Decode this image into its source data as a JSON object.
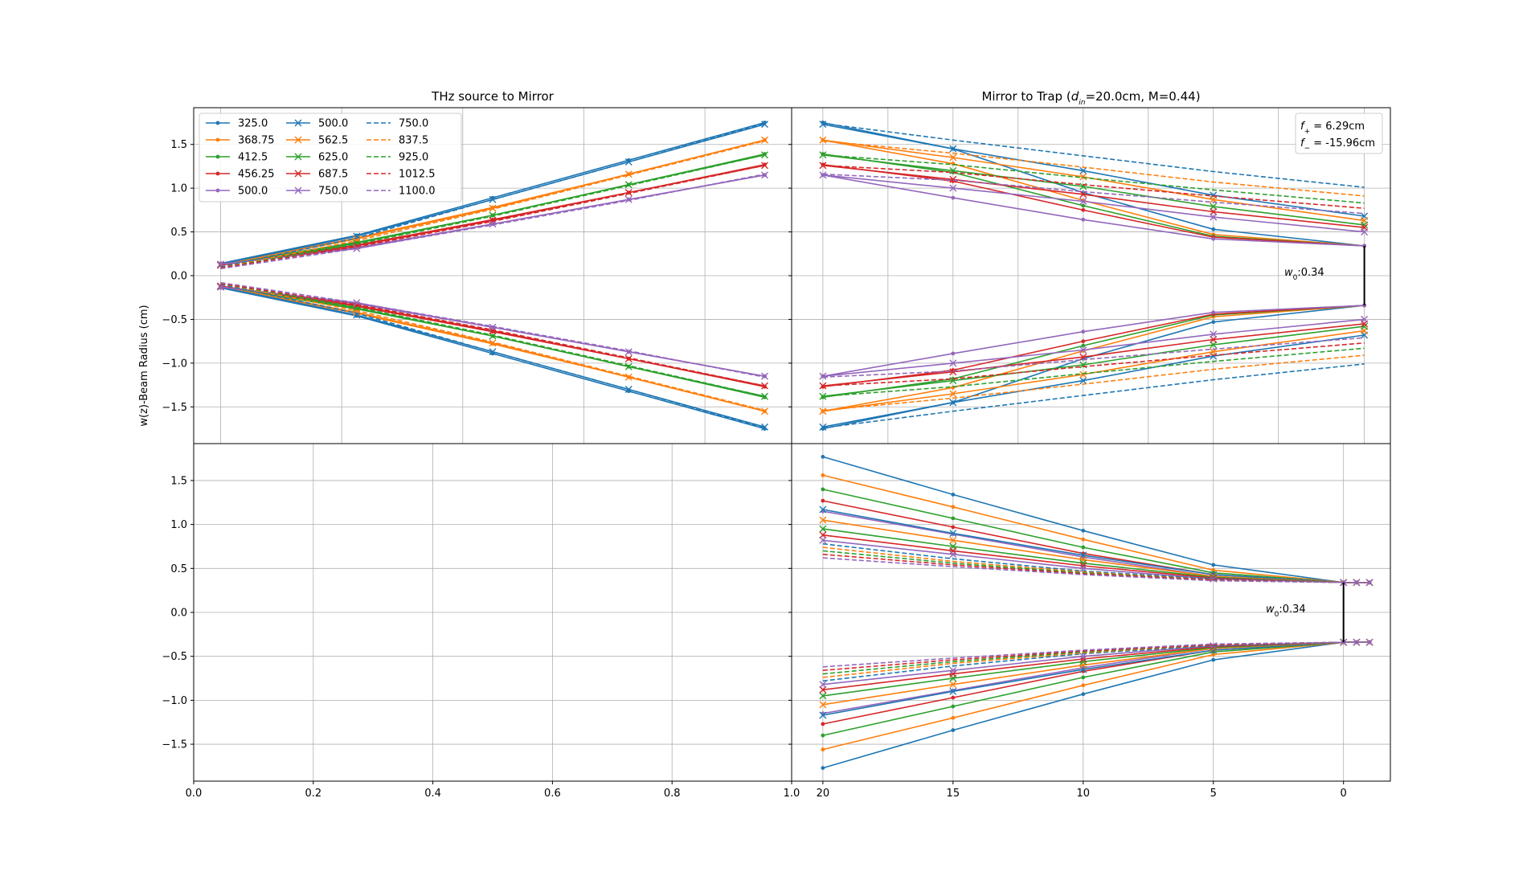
{
  "chart_data": [
    {
      "type": "line",
      "panel": "top-left",
      "title": "THz source to Mirror",
      "ylabel": "w(z)-Beam Radius (cm)",
      "xlim": [
        0.0,
        1.0
      ],
      "ylim": [
        -1.92,
        1.92
      ],
      "grid": true,
      "x_tick_labels_shown": false,
      "yticks": [
        "1.5",
        "1.0",
        "0.5",
        "0.0",
        "−0.5",
        "−1.0",
        "−1.5"
      ],
      "legend": {
        "placement": "top-left",
        "columns": 3
      },
      "x": [
        0.045,
        0.2725,
        0.5,
        0.7275,
        0.955
      ],
      "series": [
        {
          "name": "325.0",
          "color": "#1f77b4",
          "marker": "dot",
          "dash": "solid",
          "values": [
            0.14,
            0.46,
            0.89,
            1.32,
            1.75
          ]
        },
        {
          "name": "368.75",
          "color": "#ff7f0e",
          "marker": "dot",
          "dash": "solid",
          "values": [
            0.13,
            0.43,
            0.78,
            1.16,
            1.55
          ]
        },
        {
          "name": "412.5",
          "color": "#2ca02c",
          "marker": "dot",
          "dash": "solid",
          "values": [
            0.13,
            0.38,
            0.69,
            1.04,
            1.39
          ]
        },
        {
          "name": "456.25",
          "color": "#d62728",
          "marker": "dot",
          "dash": "solid",
          "values": [
            0.13,
            0.35,
            0.64,
            0.95,
            1.27
          ]
        },
        {
          "name": "500.0",
          "color": "#9467bd",
          "marker": "dot",
          "dash": "solid",
          "values": [
            0.14,
            0.32,
            0.59,
            0.87,
            1.15
          ]
        },
        {
          "name": "500.0",
          "color": "#1f77b4",
          "marker": "cross",
          "dash": "solid",
          "values": [
            0.13,
            0.45,
            0.87,
            1.3,
            1.73
          ]
        },
        {
          "name": "562.5",
          "color": "#ff7f0e",
          "marker": "cross",
          "dash": "solid",
          "values": [
            0.12,
            0.42,
            0.77,
            1.16,
            1.55
          ]
        },
        {
          "name": "625.0",
          "color": "#2ca02c",
          "marker": "cross",
          "dash": "solid",
          "values": [
            0.12,
            0.37,
            0.69,
            1.04,
            1.38
          ]
        },
        {
          "name": "687.5",
          "color": "#d62728",
          "marker": "cross",
          "dash": "solid",
          "values": [
            0.12,
            0.34,
            0.63,
            0.95,
            1.26
          ]
        },
        {
          "name": "750.0",
          "color": "#9467bd",
          "marker": "cross",
          "dash": "solid",
          "values": [
            0.13,
            0.31,
            0.59,
            0.87,
            1.15
          ]
        },
        {
          "name": "750.0",
          "color": "#1f77b4",
          "marker": "none",
          "dash": "dashed",
          "values": [
            0.1,
            0.43,
            0.87,
            1.3,
            1.74
          ]
        },
        {
          "name": "837.5",
          "color": "#ff7f0e",
          "marker": "none",
          "dash": "dashed",
          "values": [
            0.09,
            0.4,
            0.76,
            1.15,
            1.54
          ]
        },
        {
          "name": "925.0",
          "color": "#2ca02c",
          "marker": "none",
          "dash": "dashed",
          "values": [
            0.09,
            0.36,
            0.68,
            1.03,
            1.38
          ]
        },
        {
          "name": "1012.5",
          "color": "#d62728",
          "marker": "none",
          "dash": "dashed",
          "values": [
            0.09,
            0.33,
            0.62,
            0.94,
            1.26
          ]
        },
        {
          "name": "1100.0",
          "color": "#9467bd",
          "marker": "none",
          "dash": "dashed",
          "values": [
            0.08,
            0.31,
            0.58,
            0.86,
            1.16
          ]
        }
      ]
    },
    {
      "type": "line",
      "panel": "top-right",
      "title_parts": [
        "Mirror to Trap (",
        "d",
        "in",
        "=20.0cm, M=0.44)"
      ],
      "xlim": [
        21.2,
        -1.8
      ],
      "ylim": [
        -1.92,
        1.92
      ],
      "grid": true,
      "x_tick_labels_shown": false,
      "xtick_values": [
        20,
        15,
        10,
        5,
        0
      ],
      "annotation_box": [
        {
          "symbol": "f",
          "sub": "+",
          "text": " = 6.29cm"
        },
        {
          "symbol": "f",
          "sub": "−",
          "text": " = -15.96cm"
        }
      ],
      "waist_label": {
        "symbol": "w",
        "sub": "0",
        "text": ":0.34"
      },
      "waist": {
        "x": -0.8,
        "value": 0.34
      },
      "x": [
        20,
        15,
        10,
        5,
        -0.8
      ],
      "series": [
        {
          "color": "#1f77b4",
          "marker": "dot",
          "dash": "solid",
          "values": [
            1.75,
            1.45,
            0.95,
            0.53,
            0.34
          ]
        },
        {
          "color": "#ff7f0e",
          "marker": "dot",
          "dash": "solid",
          "values": [
            1.55,
            1.28,
            0.86,
            0.47,
            0.34
          ]
        },
        {
          "color": "#2ca02c",
          "marker": "dot",
          "dash": "solid",
          "values": [
            1.39,
            1.18,
            0.8,
            0.45,
            0.34
          ]
        },
        {
          "color": "#d62728",
          "marker": "dot",
          "dash": "solid",
          "values": [
            1.27,
            1.08,
            0.75,
            0.44,
            0.34
          ]
        },
        {
          "color": "#9467bd",
          "marker": "dot",
          "dash": "solid",
          "values": [
            1.15,
            0.89,
            0.64,
            0.42,
            0.34
          ]
        },
        {
          "color": "#1f77b4",
          "marker": "cross",
          "dash": "solid",
          "values": [
            1.73,
            1.45,
            1.2,
            0.92,
            0.68
          ]
        },
        {
          "color": "#ff7f0e",
          "marker": "cross",
          "dash": "solid",
          "values": [
            1.55,
            1.35,
            1.13,
            0.87,
            0.63
          ]
        },
        {
          "color": "#2ca02c",
          "marker": "cross",
          "dash": "solid",
          "values": [
            1.38,
            1.2,
            1.02,
            0.79,
            0.58
          ]
        },
        {
          "color": "#d62728",
          "marker": "cross",
          "dash": "solid",
          "values": [
            1.26,
            1.1,
            0.93,
            0.73,
            0.55
          ]
        },
        {
          "color": "#9467bd",
          "marker": "cross",
          "dash": "solid",
          "values": [
            1.15,
            1.0,
            0.85,
            0.67,
            0.5
          ]
        },
        {
          "color": "#1f77b4",
          "marker": "none",
          "dash": "dashed",
          "values": [
            1.74,
            1.55,
            1.37,
            1.19,
            1.01
          ]
        },
        {
          "color": "#ff7f0e",
          "marker": "none",
          "dash": "dashed",
          "values": [
            1.54,
            1.4,
            1.24,
            1.07,
            0.91
          ]
        },
        {
          "color": "#2ca02c",
          "marker": "none",
          "dash": "dashed",
          "values": [
            1.38,
            1.27,
            1.12,
            0.98,
            0.83
          ]
        },
        {
          "color": "#d62728",
          "marker": "none",
          "dash": "dashed",
          "values": [
            1.26,
            1.18,
            1.04,
            0.91,
            0.77
          ]
        },
        {
          "color": "#9467bd",
          "marker": "none",
          "dash": "dashed",
          "values": [
            1.16,
            1.09,
            0.96,
            0.84,
            0.71
          ]
        }
      ]
    },
    {
      "type": "line",
      "panel": "bottom-left",
      "xlim": [
        0.0,
        1.0
      ],
      "ylim": [
        -1.92,
        1.92
      ],
      "grid": true,
      "xticks": [
        "0.0",
        "0.2",
        "0.4",
        "0.6",
        "0.8",
        "1.0"
      ],
      "yticks": [
        "1.5",
        "1.0",
        "0.5",
        "0.0",
        "−0.5",
        "−1.0",
        "−1.5"
      ],
      "series": []
    },
    {
      "type": "line",
      "panel": "bottom-right",
      "xlim": [
        21.2,
        -1.8
      ],
      "ylim": [
        -1.92,
        1.92
      ],
      "grid": true,
      "xticks": [
        "20",
        "15",
        "10",
        "5",
        "0"
      ],
      "xtick_values": [
        20,
        15,
        10,
        5,
        0
      ],
      "waist_label": {
        "symbol": "w",
        "sub": "0",
        "text": ":0.34"
      },
      "waist": {
        "x": 0,
        "value": 0.34
      },
      "series": [
        {
          "color": "#1f77b4",
          "marker": "dot",
          "dash": "solid",
          "x": [
            20,
            15,
            10,
            5,
            0,
            -0.5,
            -1.0
          ],
          "values": [
            1.77,
            1.34,
            0.93,
            0.54,
            0.34,
            0.34,
            0.34
          ]
        },
        {
          "color": "#ff7f0e",
          "marker": "dot",
          "dash": "solid",
          "x": [
            20,
            15,
            10,
            5,
            0,
            -0.5,
            -1.0
          ],
          "values": [
            1.56,
            1.2,
            0.83,
            0.48,
            0.34,
            0.34,
            0.34
          ]
        },
        {
          "color": "#2ca02c",
          "marker": "dot",
          "dash": "solid",
          "x": [
            20,
            15,
            10,
            5,
            0,
            -0.5,
            -1.0
          ],
          "values": [
            1.4,
            1.07,
            0.74,
            0.45,
            0.34,
            0.34,
            0.34
          ]
        },
        {
          "color": "#d62728",
          "marker": "dot",
          "dash": "solid",
          "x": [
            20,
            15,
            10,
            5,
            0,
            -0.5,
            -1.0
          ],
          "values": [
            1.27,
            0.97,
            0.67,
            0.43,
            0.34,
            0.34,
            0.34
          ]
        },
        {
          "color": "#9467bd",
          "marker": "dot",
          "dash": "solid",
          "x": [
            20,
            15,
            10,
            5,
            0,
            -0.5,
            -1.0
          ],
          "values": [
            1.15,
            0.89,
            0.63,
            0.41,
            0.34,
            0.34,
            0.34
          ]
        },
        {
          "color": "#1f77b4",
          "marker": "cross",
          "dash": "solid",
          "x": [
            20,
            15,
            10,
            5,
            0,
            -0.5,
            -1.0
          ],
          "values": [
            1.17,
            0.9,
            0.65,
            0.43,
            0.34,
            0.34,
            0.34
          ]
        },
        {
          "color": "#ff7f0e",
          "marker": "cross",
          "dash": "solid",
          "x": [
            20,
            15,
            10,
            5,
            0,
            -0.5,
            -1.0
          ],
          "values": [
            1.05,
            0.82,
            0.6,
            0.41,
            0.34,
            0.34,
            0.34
          ]
        },
        {
          "color": "#2ca02c",
          "marker": "cross",
          "dash": "solid",
          "x": [
            20,
            15,
            10,
            5,
            0,
            -0.5,
            -1.0
          ],
          "values": [
            0.95,
            0.75,
            0.56,
            0.4,
            0.34,
            0.34,
            0.34
          ]
        },
        {
          "color": "#d62728",
          "marker": "cross",
          "dash": "solid",
          "x": [
            20,
            15,
            10,
            5,
            0,
            -0.5,
            -1.0
          ],
          "values": [
            0.88,
            0.7,
            0.53,
            0.39,
            0.34,
            0.34,
            0.34
          ]
        },
        {
          "color": "#9467bd",
          "marker": "cross",
          "dash": "solid",
          "x": [
            20,
            15,
            10,
            5,
            0,
            -0.5,
            -1.0
          ],
          "values": [
            0.82,
            0.66,
            0.5,
            0.38,
            0.34,
            0.34,
            0.34
          ]
        },
        {
          "color": "#1f77b4",
          "marker": "none",
          "dash": "dashed",
          "x": [
            20,
            15,
            10,
            5,
            0,
            -0.5,
            -1.0
          ],
          "values": [
            0.78,
            0.61,
            0.47,
            0.38,
            0.34,
            0.34,
            0.34
          ]
        },
        {
          "color": "#ff7f0e",
          "marker": "none",
          "dash": "dashed",
          "x": [
            20,
            15,
            10,
            5,
            0,
            -0.5,
            -1.0
          ],
          "values": [
            0.74,
            0.58,
            0.46,
            0.37,
            0.34,
            0.34,
            0.34
          ]
        },
        {
          "color": "#2ca02c",
          "marker": "none",
          "dash": "dashed",
          "x": [
            20,
            15,
            10,
            5,
            0,
            -0.5,
            -1.0
          ],
          "values": [
            0.7,
            0.56,
            0.45,
            0.37,
            0.34,
            0.34,
            0.34
          ]
        },
        {
          "color": "#d62728",
          "marker": "none",
          "dash": "dashed",
          "x": [
            20,
            15,
            10,
            5,
            0,
            -0.5,
            -1.0
          ],
          "values": [
            0.66,
            0.54,
            0.44,
            0.37,
            0.34,
            0.34,
            0.34
          ]
        },
        {
          "color": "#9467bd",
          "marker": "none",
          "dash": "dashed",
          "x": [
            20,
            15,
            10,
            5,
            0,
            -0.5,
            -1.0
          ],
          "values": [
            0.62,
            0.52,
            0.43,
            0.36,
            0.34,
            0.34,
            0.34
          ]
        }
      ]
    }
  ]
}
